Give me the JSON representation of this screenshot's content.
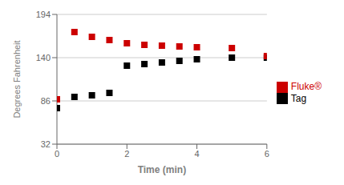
{
  "chart_data": {
    "type": "scatter",
    "xlabel": "Time (min)",
    "ylabel": "Degrees Fahrenheit",
    "xlim": [
      0,
      6
    ],
    "xticks": [
      0,
      2,
      4,
      6
    ],
    "ylim": [
      32,
      194
    ],
    "yticks": [
      32,
      86,
      140,
      194
    ],
    "grid": true,
    "legend": "right",
    "marker": "square",
    "series": [
      {
        "name": "Tag",
        "color": "#000000",
        "x": [
          0,
          0.5,
          1.0,
          1.5,
          2.0,
          2.5,
          3.0,
          3.5,
          4.0,
          5.0,
          6.0
        ],
        "values": [
          77,
          91,
          93,
          96,
          130,
          132,
          134,
          136,
          138,
          140,
          140
        ]
      },
      {
        "name": "Fluke®",
        "color": "#cc0000",
        "x": [
          0,
          0.5,
          1.0,
          1.5,
          2.0,
          2.5,
          3.0,
          3.5,
          4.0,
          5.0,
          6.0
        ],
        "values": [
          88,
          172,
          166,
          162,
          158,
          156,
          155,
          154,
          153,
          152,
          142
        ]
      }
    ]
  }
}
